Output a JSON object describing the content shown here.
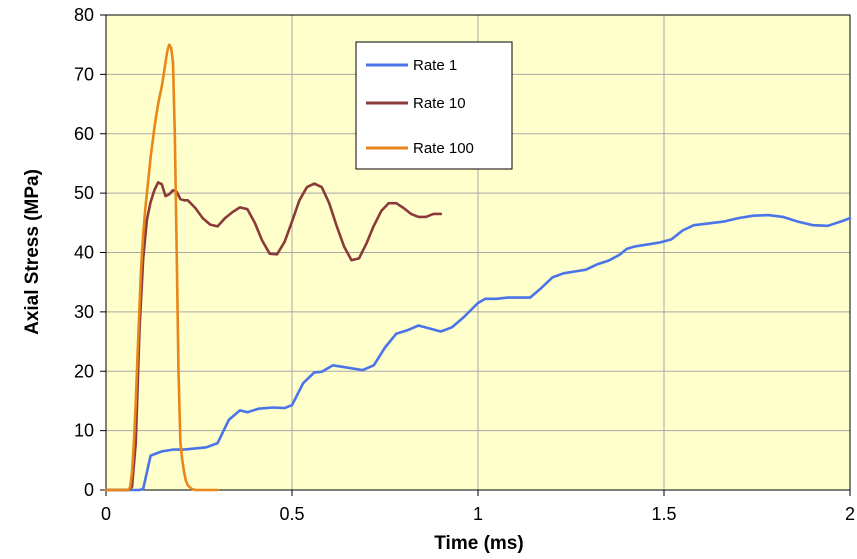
{
  "chart_data": {
    "type": "line",
    "title": "",
    "xlabel": "Time (ms)",
    "ylabel": "Axial Stress (MPa)",
    "xlim": [
      0,
      2
    ],
    "ylim": [
      0,
      80
    ],
    "x_ticks": [
      0,
      0.5,
      1,
      1.5,
      2
    ],
    "y_ticks": [
      0,
      10,
      20,
      30,
      40,
      50,
      60,
      70,
      80
    ],
    "x_tick_labels": [
      "0",
      "0.5",
      "1",
      "1.5",
      "2"
    ],
    "y_tick_labels": [
      "0",
      "10",
      "20",
      "30",
      "40",
      "50",
      "60",
      "70",
      "80"
    ],
    "grid": true,
    "plot_background": "#ffffcc",
    "gridline_color": "#a8a8a8",
    "legend_position": "top-center",
    "series": [
      {
        "name": "Rate 1",
        "color": "#4a74e8",
        "x": [
          0,
          0.08,
          0.09,
          0.1,
          0.12,
          0.15,
          0.18,
          0.21,
          0.24,
          0.27,
          0.3,
          0.33,
          0.36,
          0.38,
          0.41,
          0.45,
          0.48,
          0.5,
          0.53,
          0.56,
          0.58,
          0.61,
          0.65,
          0.69,
          0.72,
          0.75,
          0.78,
          0.81,
          0.84,
          0.87,
          0.9,
          0.93,
          0.96,
          1.0,
          1.02,
          1.05,
          1.08,
          1.11,
          1.14,
          1.17,
          1.2,
          1.23,
          1.26,
          1.29,
          1.32,
          1.35,
          1.38,
          1.4,
          1.42,
          1.45,
          1.49,
          1.52,
          1.55,
          1.58,
          1.62,
          1.66,
          1.7,
          1.74,
          1.78,
          1.82,
          1.86,
          1.9,
          1.94,
          1.98,
          2.0
        ],
        "y": [
          0,
          0,
          0,
          0.2,
          5.8,
          6.5,
          6.8,
          6.8,
          7.0,
          7.2,
          7.9,
          11.8,
          13.4,
          13.1,
          13.7,
          13.9,
          13.8,
          14.3,
          18.0,
          19.8,
          19.9,
          21.0,
          20.6,
          20.2,
          21.0,
          24.0,
          26.3,
          26.9,
          27.7,
          27.2,
          26.7,
          27.4,
          29.0,
          31.5,
          32.2,
          32.2,
          32.4,
          32.4,
          32.4,
          34.0,
          35.8,
          36.5,
          36.8,
          37.1,
          38.0,
          38.6,
          39.6,
          40.6,
          41.0,
          41.3,
          41.7,
          42.2,
          43.7,
          44.6,
          44.9,
          45.2,
          45.8,
          46.2,
          46.3,
          46.0,
          45.2,
          44.6,
          44.5,
          45.3,
          45.8
        ]
      },
      {
        "name": "Rate 10",
        "color": "#8b3a3a",
        "x": [
          0,
          0.06,
          0.07,
          0.08,
          0.09,
          0.1,
          0.11,
          0.12,
          0.13,
          0.14,
          0.15,
          0.16,
          0.17,
          0.18,
          0.19,
          0.2,
          0.21,
          0.22,
          0.24,
          0.26,
          0.28,
          0.3,
          0.32,
          0.34,
          0.36,
          0.38,
          0.4,
          0.42,
          0.44,
          0.46,
          0.48,
          0.5,
          0.52,
          0.54,
          0.56,
          0.58,
          0.6,
          0.62,
          0.64,
          0.66,
          0.68,
          0.7,
          0.72,
          0.74,
          0.76,
          0.78,
          0.8,
          0.82,
          0.84,
          0.86,
          0.88,
          0.9
        ],
        "y": [
          0,
          0,
          0.5,
          8.0,
          27.0,
          39.0,
          45.5,
          48.5,
          50.5,
          51.8,
          51.5,
          49.5,
          49.8,
          50.5,
          50.2,
          49.0,
          48.8,
          48.8,
          47.5,
          45.8,
          44.7,
          44.4,
          45.8,
          46.8,
          47.6,
          47.3,
          45.0,
          42.0,
          39.8,
          39.7,
          41.8,
          45.2,
          48.8,
          51.0,
          51.6,
          51.0,
          48.3,
          44.5,
          41.0,
          38.7,
          39.0,
          41.5,
          44.5,
          47.0,
          48.3,
          48.3,
          47.5,
          46.5,
          46.0,
          46.0,
          46.5,
          46.5
        ]
      },
      {
        "name": "Rate 100",
        "color": "#e8861a",
        "x": [
          0,
          0.06,
          0.065,
          0.07,
          0.075,
          0.08,
          0.085,
          0.09,
          0.095,
          0.1,
          0.105,
          0.11,
          0.115,
          0.12,
          0.125,
          0.13,
          0.135,
          0.14,
          0.145,
          0.15,
          0.155,
          0.16,
          0.165,
          0.17,
          0.175,
          0.18,
          0.185,
          0.19,
          0.195,
          0.2,
          0.205,
          0.21,
          0.215,
          0.22,
          0.23,
          0.24,
          0.25,
          0.3
        ],
        "y": [
          0,
          0,
          0.5,
          3.0,
          8.0,
          15.0,
          23.0,
          31.0,
          38.0,
          43.0,
          47.0,
          50.0,
          53.0,
          56.0,
          58.5,
          61.0,
          63.0,
          65.0,
          66.5,
          68.0,
          70.0,
          72.0,
          74.0,
          75.0,
          74.5,
          72.0,
          60.0,
          40.0,
          20.0,
          8.0,
          5.0,
          3.0,
          1.5,
          0.8,
          0.2,
          0,
          0,
          0
        ]
      }
    ]
  }
}
